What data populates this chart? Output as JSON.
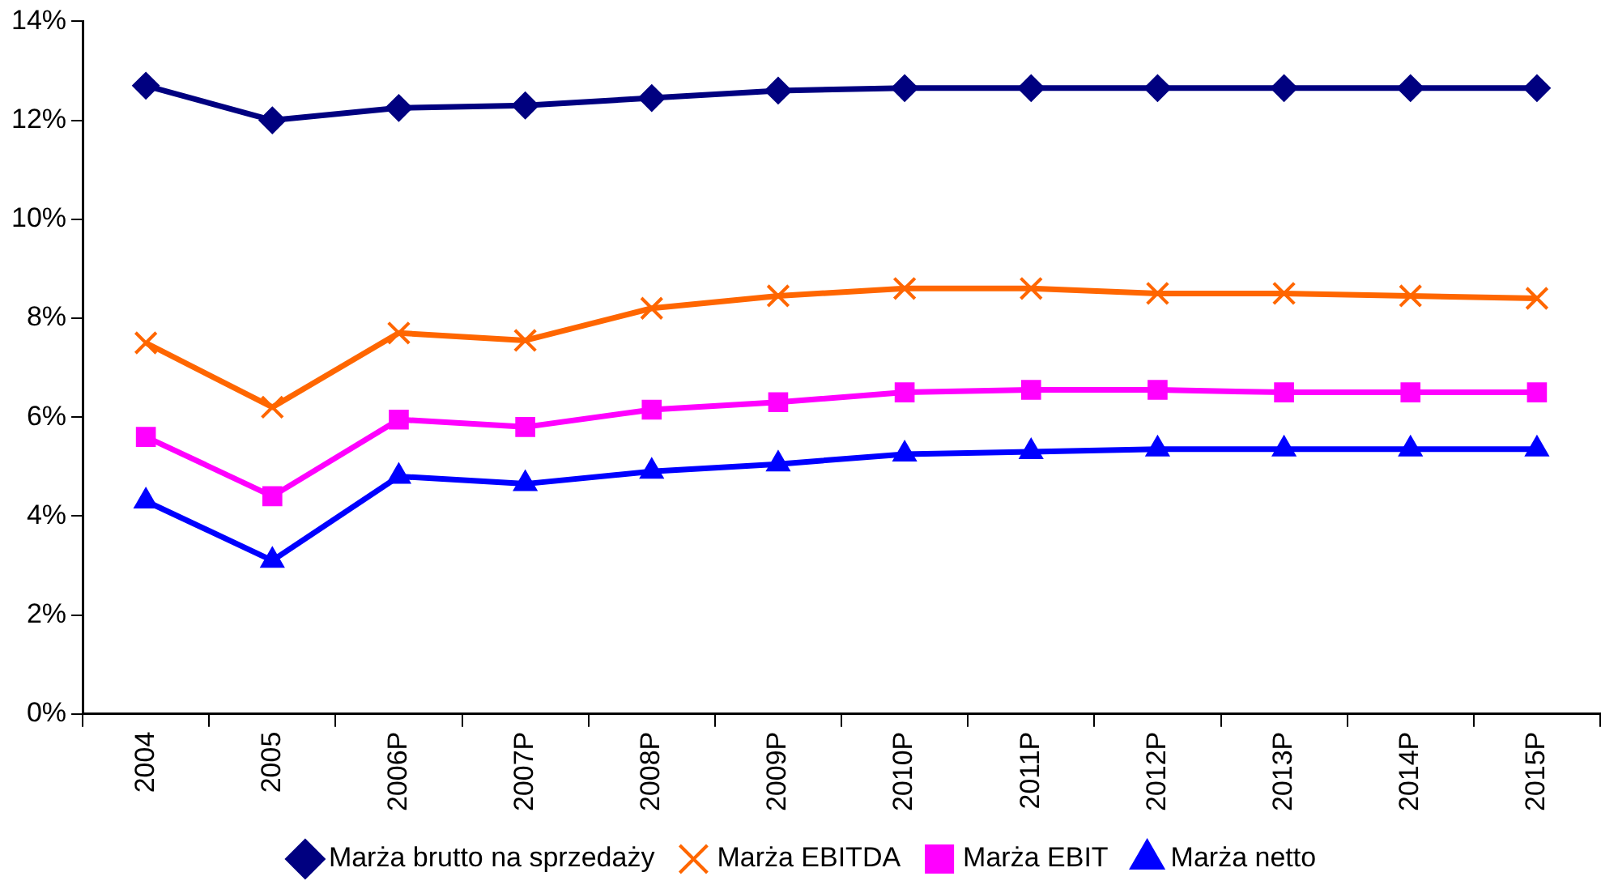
{
  "chart_data": {
    "type": "line",
    "categories": [
      "2004",
      "2005",
      "2006P",
      "2007P",
      "2008P",
      "2009P",
      "2010P",
      "2011P",
      "2012P",
      "2013P",
      "2014P",
      "2015P"
    ],
    "series": [
      {
        "name": "Marża brutto na sprzedaży",
        "color": "#000080",
        "marker": "diamond",
        "values": [
          12.7,
          12.0,
          12.25,
          12.3,
          12.45,
          12.6,
          12.65,
          12.65,
          12.65,
          12.65,
          12.65,
          12.65
        ]
      },
      {
        "name": "Marża EBITDA",
        "color": "#ff6600",
        "marker": "cross",
        "values": [
          7.5,
          6.2,
          7.7,
          7.55,
          8.2,
          8.45,
          8.6,
          8.6,
          8.5,
          8.5,
          8.45,
          8.4
        ]
      },
      {
        "name": "Marża EBIT",
        "color": "#ff00ff",
        "marker": "square",
        "values": [
          5.6,
          4.4,
          5.95,
          5.8,
          6.15,
          6.3,
          6.5,
          6.55,
          6.55,
          6.5,
          6.5,
          6.5
        ]
      },
      {
        "name": "Marża netto",
        "color": "#0000ff",
        "marker": "triangle",
        "values": [
          4.3,
          3.1,
          4.8,
          4.65,
          4.9,
          5.05,
          5.25,
          5.3,
          5.35,
          5.35,
          5.35,
          5.35
        ]
      }
    ],
    "ylim": [
      0,
      14
    ],
    "yticks": [
      {
        "value": 0,
        "label": "0%"
      },
      {
        "value": 2,
        "label": "2%"
      },
      {
        "value": 4,
        "label": "4%"
      },
      {
        "value": 6,
        "label": "6%"
      },
      {
        "value": 8,
        "label": "8%"
      },
      {
        "value": 10,
        "label": "10%"
      },
      {
        "value": 12,
        "label": "12%"
      },
      {
        "value": 14,
        "label": "14%"
      }
    ],
    "grid": false,
    "legend": "bottom",
    "line_style": "solid"
  }
}
